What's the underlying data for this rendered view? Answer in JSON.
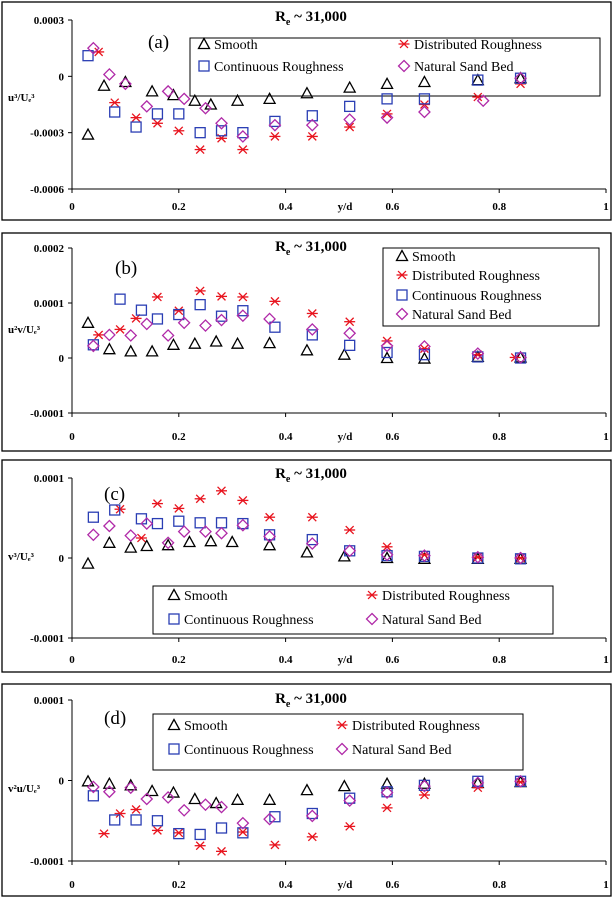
{
  "figure": {
    "x_axis_label": "y/d",
    "x_ticks": [
      "0",
      "0.2",
      "0.4",
      "0.6",
      "0.8",
      "1"
    ],
    "series_styles": {
      "Smooth": {
        "marker": "triangle",
        "color": "#000000"
      },
      "Distributed Roughness": {
        "marker": "asterisk",
        "color": "#e8141e"
      },
      "Continuous Roughness": {
        "marker": "square",
        "color": "#2a3eb4"
      },
      "Natural Sand Bed": {
        "marker": "diamond",
        "color": "#b02aa8"
      }
    }
  },
  "chart_data": [
    {
      "type": "scatter",
      "panel_label": "(a)",
      "title": "R",
      "title_sub": "e",
      "title_suffix": " ~ 31,000",
      "ylabel": "u³/Uₑ³",
      "xlim": [
        0,
        1
      ],
      "ylim": [
        -0.0006,
        0.0003
      ],
      "y_ticks": [
        "0.0003",
        "0",
        "-0.0003",
        "-0.0006"
      ],
      "y_tick_values": [
        0.0003,
        0,
        -0.0003,
        -0.0006
      ],
      "series": [
        {
          "name": "Smooth",
          "x": [
            0.03,
            0.06,
            0.1,
            0.15,
            0.19,
            0.23,
            0.26,
            0.31,
            0.37,
            0.44,
            0.52,
            0.59,
            0.66,
            0.76,
            0.84
          ],
          "y": [
            -0.00031,
            -5e-05,
            -3e-05,
            -8e-05,
            -0.0001,
            -0.00013,
            -0.00015,
            -0.00013,
            -0.00012,
            -9e-05,
            -6e-05,
            -4e-05,
            -3e-05,
            -2e-05,
            -1e-05
          ]
        },
        {
          "name": "Distributed Roughness",
          "x": [
            0.05,
            0.08,
            0.12,
            0.16,
            0.2,
            0.24,
            0.28,
            0.32,
            0.38,
            0.45,
            0.52,
            0.59,
            0.66,
            0.76,
            0.84
          ],
          "y": [
            0.00013,
            -0.00014,
            -0.00022,
            -0.00025,
            -0.00029,
            -0.00039,
            -0.00033,
            -0.00039,
            -0.00032,
            -0.00032,
            -0.00027,
            -0.0002,
            -0.00015,
            -0.00011,
            -4e-05
          ]
        },
        {
          "name": "Continuous Roughness",
          "x": [
            0.03,
            0.08,
            0.12,
            0.16,
            0.2,
            0.24,
            0.28,
            0.32,
            0.38,
            0.45,
            0.52,
            0.59,
            0.66,
            0.76,
            0.84
          ],
          "y": [
            0.00011,
            -0.00019,
            -0.00027,
            -0.0002,
            -0.0002,
            -0.0003,
            -0.00029,
            -0.0003,
            -0.00024,
            -0.00021,
            -0.00016,
            -0.00012,
            -0.00012,
            -2e-05,
            -1e-05
          ]
        },
        {
          "name": "Natural Sand Bed",
          "x": [
            0.04,
            0.07,
            0.1,
            0.14,
            0.18,
            0.21,
            0.25,
            0.28,
            0.32,
            0.38,
            0.45,
            0.52,
            0.59,
            0.66,
            0.77,
            0.84
          ],
          "y": [
            0.00015,
            1e-05,
            -4e-05,
            -0.00016,
            -8e-05,
            -0.00012,
            -0.00017,
            -0.00025,
            -0.00032,
            -0.00026,
            -0.00026,
            -0.00023,
            -0.00022,
            -0.00019,
            -0.00013,
            -1e-05
          ]
        }
      ]
    },
    {
      "type": "scatter",
      "panel_label": "(b)",
      "title": "R",
      "title_sub": "e",
      "title_suffix": " ~ 31,000",
      "ylabel": "u²v/Uₑ³",
      "xlim": [
        0,
        1
      ],
      "ylim": [
        -0.0001,
        0.0002
      ],
      "y_ticks": [
        "0.0002",
        "0.0001",
        "0",
        "-0.0001"
      ],
      "y_tick_values": [
        0.0002,
        0.0001,
        0,
        -0.0001
      ],
      "series": [
        {
          "name": "Smooth",
          "x": [
            0.03,
            0.07,
            0.11,
            0.15,
            0.19,
            0.23,
            0.27,
            0.31,
            0.37,
            0.44,
            0.51,
            0.59,
            0.66,
            0.76,
            0.84
          ],
          "y": [
            6.4e-05,
            1.6e-05,
            1.2e-05,
            1.2e-05,
            2.4e-05,
            2.6e-05,
            3e-05,
            2.6e-05,
            2.7e-05,
            1.4e-05,
            6e-06,
            0.0,
            -1e-06,
            2e-06,
            1e-06
          ]
        },
        {
          "name": "Distributed Roughness",
          "x": [
            0.05,
            0.09,
            0.12,
            0.16,
            0.2,
            0.24,
            0.28,
            0.32,
            0.38,
            0.45,
            0.52,
            0.59,
            0.66,
            0.76,
            0.83
          ],
          "y": [
            4.2e-05,
            5.2e-05,
            7.2e-05,
            0.000111,
            8.6e-05,
            0.000122,
            0.000112,
            0.000111,
            0.000103,
            8.1e-05,
            6.6e-05,
            3.1e-05,
            1.7e-05,
            6e-06,
            1e-06
          ]
        },
        {
          "name": "Continuous Roughness",
          "x": [
            0.04,
            0.09,
            0.13,
            0.16,
            0.2,
            0.24,
            0.28,
            0.32,
            0.38,
            0.45,
            0.52,
            0.59,
            0.66,
            0.76,
            0.84
          ],
          "y": [
            2.4e-05,
            0.000107,
            8.7e-05,
            7.1e-05,
            7.9e-05,
            9.7e-05,
            7.6e-05,
            8.6e-05,
            5.6e-05,
            4.2e-05,
            2.3e-05,
            1e-05,
            6e-06,
            2e-06,
            0.0
          ]
        },
        {
          "name": "Natural Sand Bed",
          "x": [
            0.04,
            0.07,
            0.11,
            0.14,
            0.18,
            0.21,
            0.25,
            0.28,
            0.32,
            0.37,
            0.45,
            0.52,
            0.59,
            0.66,
            0.76,
            0.84
          ],
          "y": [
            2.2e-05,
            4.2e-05,
            4.1e-05,
            6.2e-05,
            4.1e-05,
            6.4e-05,
            5.9e-05,
            6.9e-05,
            7.7e-05,
            7.1e-05,
            5.2e-05,
            4.5e-05,
            2.2e-05,
            2.1e-05,
            8e-06,
            1e-06
          ]
        }
      ]
    },
    {
      "type": "scatter",
      "panel_label": "(c)",
      "title": "R",
      "title_sub": "e",
      "title_suffix": " ~ 31,000",
      "ylabel": "v³/Uₑ³",
      "xlim": [
        0,
        1
      ],
      "ylim": [
        -0.0001,
        0.0001
      ],
      "y_ticks": [
        "0.0001",
        "0",
        "-0.0001"
      ],
      "y_tick_values": [
        0.0001,
        0,
        -0.0001
      ],
      "series": [
        {
          "name": "Smooth",
          "x": [
            0.03,
            0.07,
            0.11,
            0.14,
            0.18,
            0.22,
            0.26,
            0.3,
            0.37,
            0.44,
            0.51,
            0.59,
            0.66,
            0.76,
            0.84
          ],
          "y": [
            -7e-06,
            1.9e-05,
            1.3e-05,
            1.5e-05,
            1.6e-05,
            2e-05,
            2.1e-05,
            2e-05,
            1.6e-05,
            7e-06,
            2e-06,
            0.0,
            -1e-06,
            -1e-06,
            -1e-06
          ]
        },
        {
          "name": "Distributed Roughness",
          "x": [
            0.09,
            0.13,
            0.16,
            0.2,
            0.24,
            0.28,
            0.32,
            0.37,
            0.45,
            0.52,
            0.59,
            0.66,
            0.76,
            0.84
          ],
          "y": [
            6.1e-05,
            2.5e-05,
            6.8e-05,
            6.2e-05,
            7.4e-05,
            8.4e-05,
            7.2e-05,
            5.1e-05,
            5.1e-05,
            3.5e-05,
            1.4e-05,
            4e-06,
            1e-06,
            0.0
          ]
        },
        {
          "name": "Continuous Roughness",
          "x": [
            0.04,
            0.08,
            0.13,
            0.16,
            0.2,
            0.24,
            0.28,
            0.32,
            0.37,
            0.45,
            0.52,
            0.59,
            0.66,
            0.76,
            0.84
          ],
          "y": [
            5.1e-05,
            6e-05,
            4.9e-05,
            4.3e-05,
            4.6e-05,
            4.4e-05,
            4.4e-05,
            4.3e-05,
            2.9e-05,
            2.3e-05,
            9e-06,
            3e-06,
            2e-06,
            0.0,
            -1e-06
          ]
        },
        {
          "name": "Natural Sand Bed",
          "x": [
            0.04,
            0.07,
            0.11,
            0.14,
            0.18,
            0.21,
            0.25,
            0.28,
            0.32,
            0.37,
            0.45,
            0.52,
            0.59,
            0.66,
            0.76,
            0.84
          ],
          "y": [
            2.9e-05,
            4e-05,
            2.8e-05,
            4.3e-05,
            1.9e-05,
            3.3e-05,
            3.3e-05,
            3.1e-05,
            4.1e-05,
            2.7e-05,
            1.8e-05,
            9e-06,
            4e-06,
            3e-06,
            1e-06,
            0.0
          ]
        }
      ],
      "legend": {
        "labels": [
          "Smooth",
          "Distributed Roughness",
          "Continuous Roughness",
          "Natural Sand Bed"
        ]
      }
    },
    {
      "type": "scatter",
      "panel_label": "(d)",
      "title": "R",
      "title_sub": "e",
      "title_suffix": " ~ 31,000",
      "ylabel": "v²u/Uₑ³",
      "xlim": [
        0,
        1
      ],
      "ylim": [
        -0.0001,
        0.0001
      ],
      "y_ticks": [
        "0.0001",
        "0",
        "-0.0001"
      ],
      "y_tick_values": [
        0.0001,
        0,
        -0.0001
      ],
      "series": [
        {
          "name": "Smooth",
          "x": [
            0.03,
            0.07,
            0.11,
            0.15,
            0.19,
            0.23,
            0.27,
            0.31,
            0.37,
            0.44,
            0.51,
            0.59,
            0.66,
            0.76,
            0.84
          ],
          "y": [
            -1e-06,
            -4e-06,
            -6e-06,
            -1.3e-05,
            -1.5e-05,
            -2.3e-05,
            -2.8e-05,
            -2.4e-05,
            -2.4e-05,
            -1.2e-05,
            -7e-06,
            -4e-06,
            -4e-06,
            -3e-06,
            -2e-06
          ]
        },
        {
          "name": "Distributed Roughness",
          "x": [
            0.06,
            0.09,
            0.12,
            0.16,
            0.2,
            0.24,
            0.28,
            0.32,
            0.38,
            0.45,
            0.52,
            0.59,
            0.66,
            0.76,
            0.84
          ],
          "y": [
            -6.6e-05,
            -4.1e-05,
            -3.6e-05,
            -6.2e-05,
            -6.5e-05,
            -8.1e-05,
            -8.8e-05,
            -6.4e-05,
            -8e-05,
            -7e-05,
            -5.7e-05,
            -3.4e-05,
            -1.8e-05,
            -9e-06,
            -2e-06
          ]
        },
        {
          "name": "Continuous Roughness",
          "x": [
            0.04,
            0.08,
            0.12,
            0.16,
            0.2,
            0.24,
            0.28,
            0.32,
            0.38,
            0.45,
            0.52,
            0.59,
            0.66,
            0.76,
            0.84
          ],
          "y": [
            -1.9e-05,
            -4.9e-05,
            -4.9e-05,
            -5e-05,
            -6.6e-05,
            -6.7e-05,
            -5.9e-05,
            -6.5e-05,
            -4.5e-05,
            -4.1e-05,
            -2.2e-05,
            -1.4e-05,
            -6e-06,
            -1e-06,
            -1e-06
          ]
        },
        {
          "name": "Natural Sand Bed",
          "x": [
            0.04,
            0.07,
            0.11,
            0.14,
            0.18,
            0.21,
            0.25,
            0.28,
            0.32,
            0.37,
            0.45,
            0.52,
            0.59,
            0.66,
            0.76,
            0.84
          ],
          "y": [
            -8e-06,
            -1.4e-05,
            -9e-06,
            -2.3e-05,
            -2.1e-05,
            -3.7e-05,
            -3e-05,
            -3.3e-05,
            -5.3e-05,
            -4.8e-05,
            -4.4e-05,
            -2.5e-05,
            -1.5e-05,
            -7e-06,
            -3e-06,
            -1e-06
          ]
        }
      ]
    }
  ]
}
